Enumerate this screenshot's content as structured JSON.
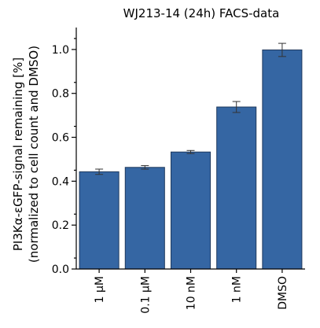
{
  "chart_data": {
    "type": "bar",
    "title": "WJ213-14 (24h) FACS-data",
    "ylabel_line1": "PI3Kα-εGFP-signal remaining [%]",
    "ylabel_line2": "(normalized  to cell count and DMSO)",
    "xlabel": "",
    "categories": [
      "1 µM",
      "0.1 µM",
      "10 nM",
      "1 nM",
      "DMSO"
    ],
    "values": [
      0.443,
      0.463,
      0.533,
      0.738,
      0.998
    ],
    "errors": [
      0.012,
      0.008,
      0.007,
      0.025,
      0.03
    ],
    "ylim": [
      0,
      1.1
    ],
    "yticks": [
      0.0,
      0.2,
      0.4,
      0.6,
      0.8,
      1.0
    ],
    "ytick_labels": [
      "0.0",
      "0.2",
      "0.4",
      "0.6",
      "0.8",
      "1.0"
    ],
    "bar_color": "#3566a3",
    "grid": false,
    "legend": "none"
  }
}
